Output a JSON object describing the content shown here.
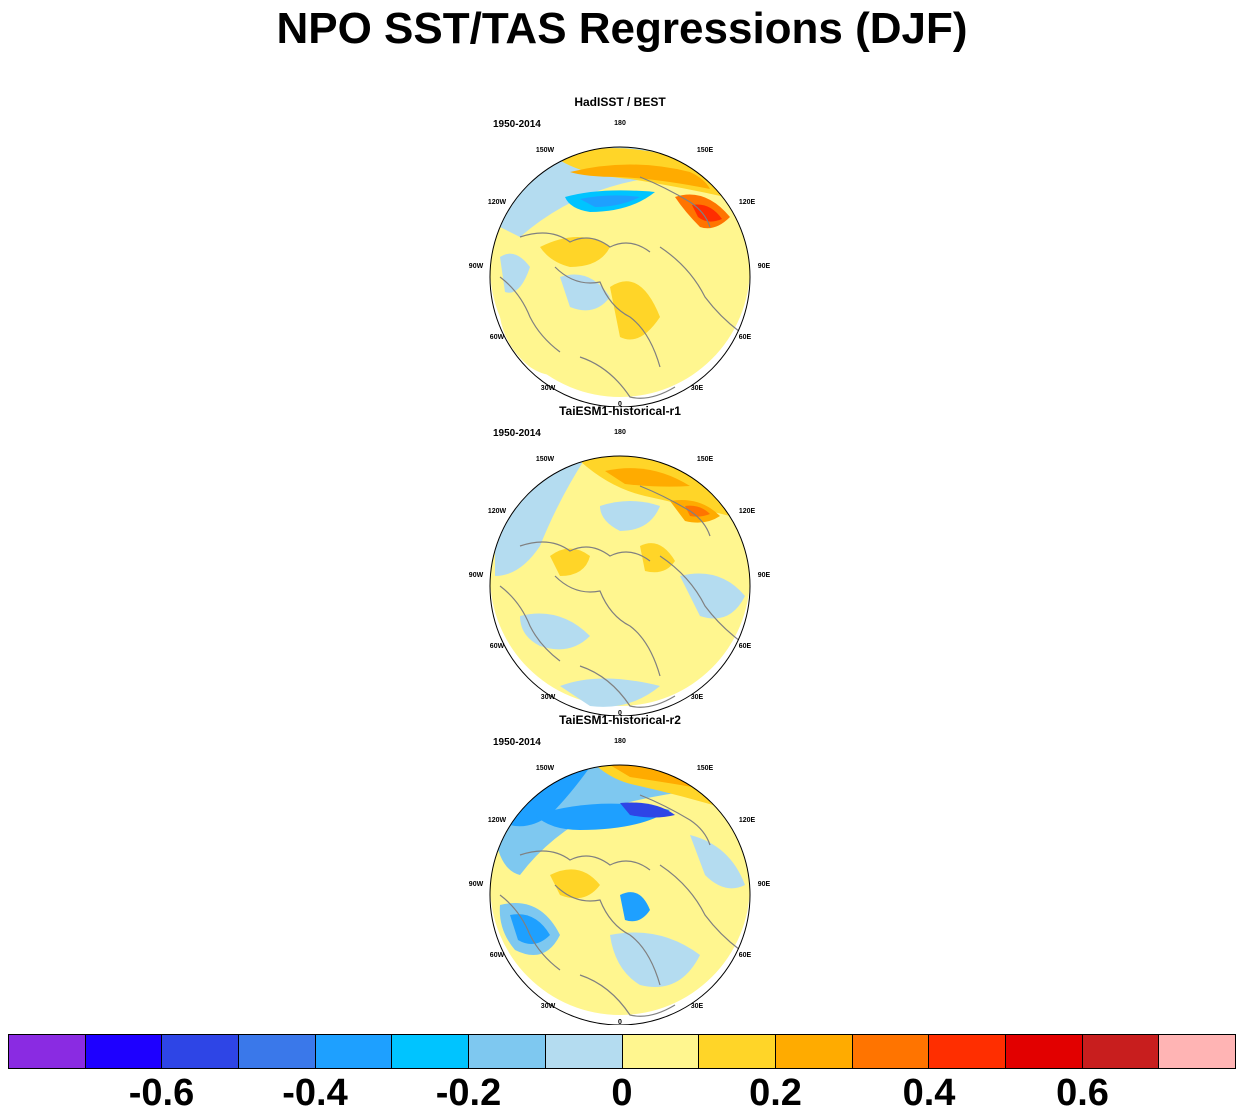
{
  "title": "NPO SST/TAS Regressions (DJF)",
  "panels": [
    {
      "title": "HadISST / BEST",
      "period": "1950-2014",
      "pattern": "obs"
    },
    {
      "title": "TaiESM1-historical-r1",
      "period": "1950-2014",
      "pattern": "r1"
    },
    {
      "title": "TaiESM1-historical-r2",
      "period": "1950-2014",
      "pattern": "r2"
    }
  ],
  "lon_labels": [
    "180",
    "150E",
    "120E",
    "90E",
    "60E",
    "30E",
    "0",
    "30W",
    "60W",
    "90W",
    "120W",
    "150W"
  ],
  "colorbar": {
    "colors": [
      "#8a2be2",
      "#1e00ff",
      "#2e45e6",
      "#3a78ea",
      "#1ea0ff",
      "#00c4ff",
      "#7ec8f0",
      "#b4dcf0",
      "#fff68f",
      "#ffd528",
      "#ffab00",
      "#ff7400",
      "#ff2e00",
      "#e20000",
      "#c81e1e",
      "#ffb4b4"
    ],
    "tick_labels": [
      "-0.6",
      "-0.4",
      "-0.2",
      "0",
      "0.2",
      "0.4",
      "0.6"
    ]
  },
  "map_colors": {
    "land_outline": "#808080",
    "base_positive": "#fff68f",
    "base_negative": "#b4dcf0"
  }
}
